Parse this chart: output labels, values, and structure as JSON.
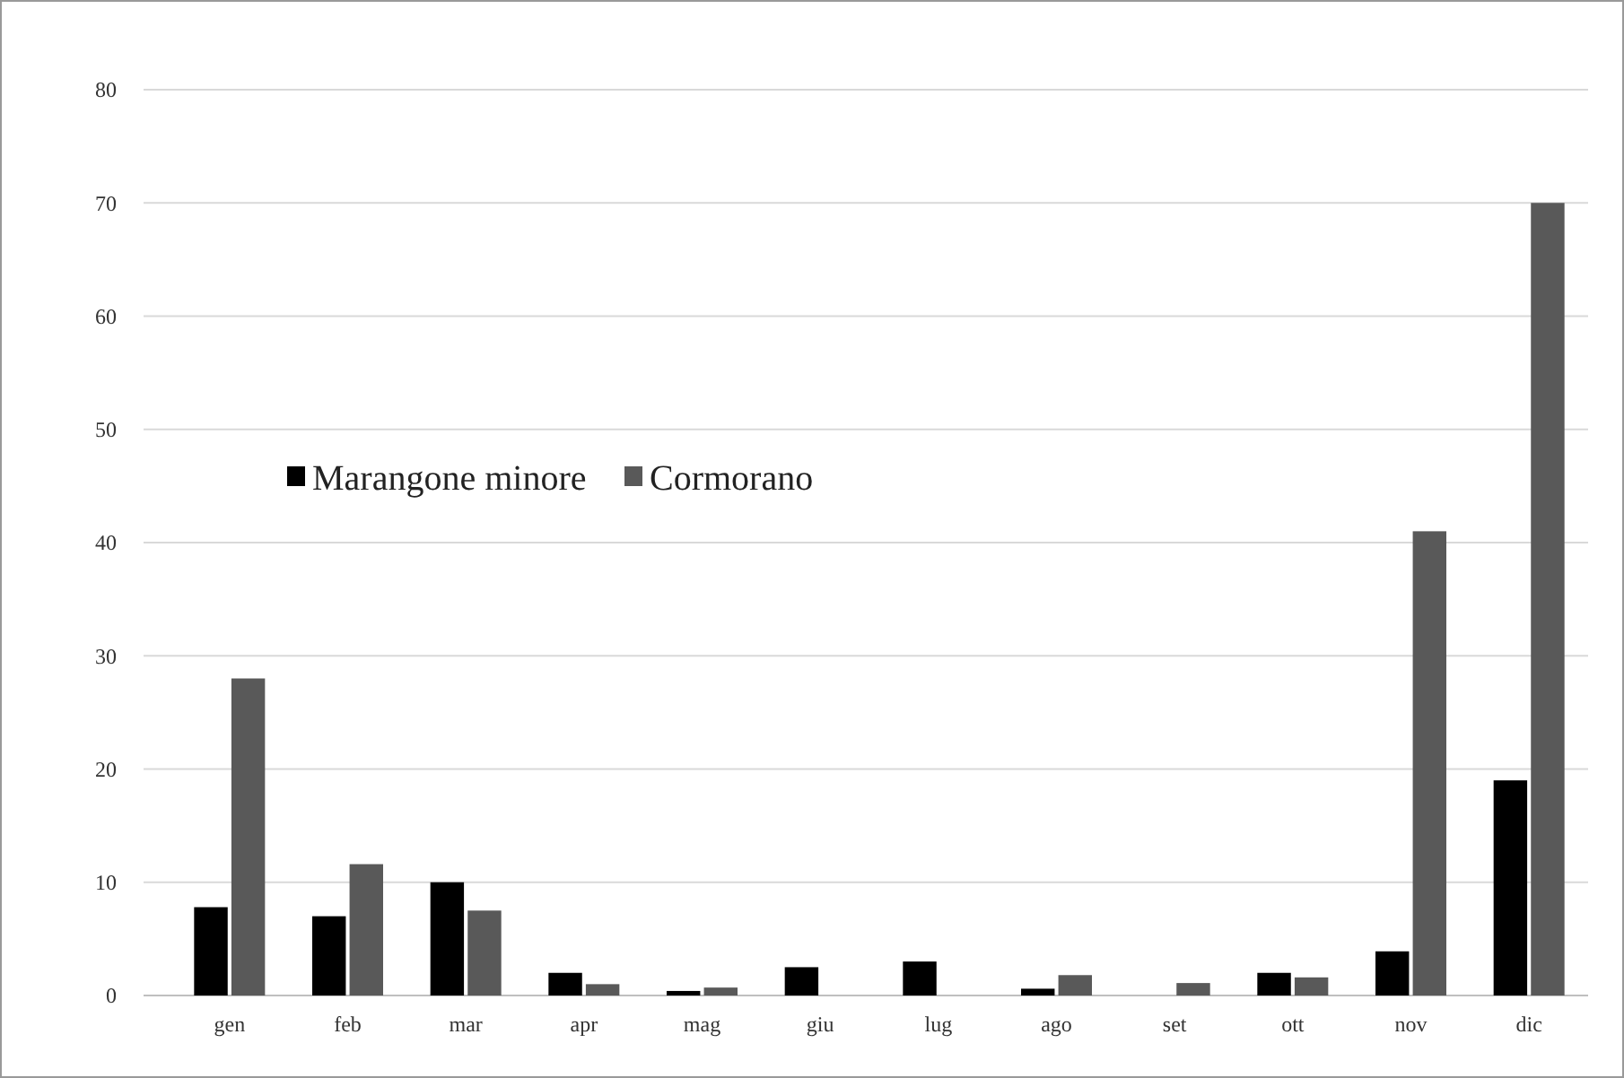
{
  "chart_data": {
    "type": "bar",
    "categories": [
      "gen",
      "feb",
      "mar",
      "apr",
      "mag",
      "giu",
      "lug",
      "ago",
      "set",
      "ott",
      "nov",
      "dic"
    ],
    "series": [
      {
        "name": "Marangone minore",
        "color": "#000000",
        "values": [
          7.8,
          7,
          10,
          2,
          0.4,
          2.5,
          3,
          0.6,
          0,
          2,
          3.9,
          19
        ]
      },
      {
        "name": "Cormorano",
        "color": "#595959",
        "values": [
          28,
          11.6,
          7.5,
          1,
          0.7,
          0,
          0,
          1.8,
          1.1,
          1.6,
          41,
          70
        ]
      }
    ],
    "ylim": [
      0,
      80
    ],
    "yticks": [
      0,
      10,
      20,
      30,
      40,
      50,
      60,
      70,
      80
    ],
    "grid": "y",
    "legend": "left"
  }
}
